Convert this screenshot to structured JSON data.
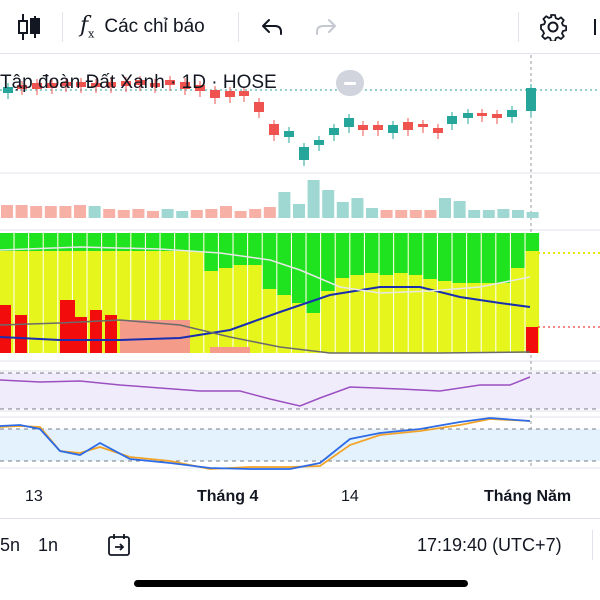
{
  "toolbar": {
    "indicators_label": "Các chỉ báo"
  },
  "chart": {
    "symbol_title": "Tập đoàn Đất Xanh · 1D · HOSE",
    "colors": {
      "up": "#26a69a",
      "down": "#ef5350",
      "green_zone": "#1ee31e",
      "yellow_zone": "#e6f51c",
      "red_zone": "#f20c0c",
      "salmon": "#f49b8a"
    }
  },
  "time_axis": {
    "ticks": [
      "13",
      "Tháng 4",
      "14",
      "Tháng Năm"
    ]
  },
  "bottom_bar": {
    "range_5n": "5n",
    "range_1n": "1n",
    "clock": "17:19:40 (UTC+7)"
  }
}
